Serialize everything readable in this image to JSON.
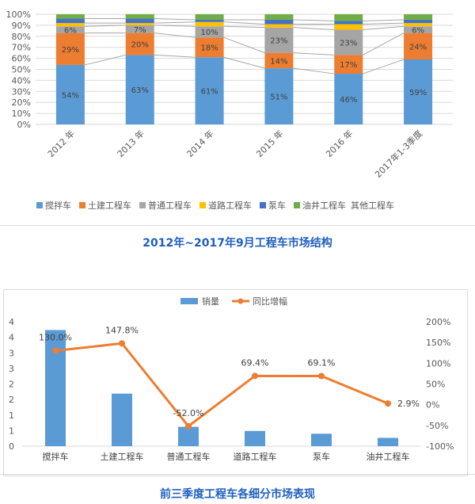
{
  "chart_data": [
    {
      "type": "bar",
      "stacked": true,
      "percent": true,
      "categories": [
        "2012 年",
        "2013 年",
        "2014 年",
        "2015 年",
        "2016 年",
        "2017年1-3季度"
      ],
      "series": [
        {
          "name": "搅拌车",
          "color": "#5b9bd5",
          "values": [
            54,
            63,
            61,
            51,
            46,
            59
          ]
        },
        {
          "name": "土建工程车",
          "color": "#ed7d31",
          "values": [
            29,
            20,
            18,
            14,
            17,
            24
          ]
        },
        {
          "name": "普通工程车",
          "color": "#a5a5a5",
          "values": [
            6,
            7,
            10,
            23,
            23,
            6
          ]
        },
        {
          "name": "道路工程车",
          "color": "#ffc000",
          "values": [
            3,
            2,
            4,
            3,
            5,
            3
          ]
        },
        {
          "name": "泵车",
          "color": "#4472c4",
          "values": [
            4,
            4,
            2,
            4,
            3,
            3
          ]
        },
        {
          "name": "油井工程车",
          "color": "#70ad47",
          "values": [
            4,
            4,
            5,
            5,
            6,
            5
          ]
        }
      ],
      "data_labels": {
        "搅拌车": [
          "54%",
          "63%",
          "61%",
          "51%",
          "46%",
          "59%"
        ],
        "土建工程车": [
          "29%",
          "20%",
          "18%",
          "14%",
          "17%",
          "24%"
        ],
        "普通工程车": [
          "6%",
          "7%",
          "10%",
          "23%",
          "23%",
          "6%"
        ]
      },
      "y_ticks": [
        "0%",
        "10%",
        "20%",
        "30%",
        "40%",
        "50%",
        "60%",
        "70%",
        "80%",
        "90%",
        "100%"
      ],
      "legend_tail": "其他工程车",
      "ylim": [
        0,
        100
      ],
      "legend_position": "bottom",
      "caption": "2012年~2017年9月工程车市场结构"
    },
    {
      "type": "bar",
      "combo": "bar+line",
      "categories": [
        "搅拌车",
        "土建工程车",
        "普通工程车",
        "道路工程车",
        "泵车",
        "油井工程车"
      ],
      "series": [
        {
          "name": "销量",
          "color": "#5b9bd5",
          "axis": "left",
          "values": [
            4.2,
            1.9,
            0.7,
            0.55,
            0.45,
            0.3
          ]
        },
        {
          "name": "同比增幅",
          "color": "#ed7d31",
          "axis": "right",
          "type": "line",
          "values": [
            130.0,
            147.8,
            -52.0,
            69.4,
            69.1,
            2.9
          ],
          "labels": [
            "130.0%",
            "147.8%",
            "-52.0%",
            "69.4%",
            "69.1%",
            "2.9%"
          ]
        }
      ],
      "left_ticks": [
        "0",
        "1",
        "1",
        "2",
        "2",
        "3",
        "3",
        "4",
        "4"
      ],
      "right_ticks": [
        "-100%",
        "-50%",
        "0%",
        "50%",
        "100%",
        "150%",
        "200%"
      ],
      "ylim_left": [
        0,
        4.5
      ],
      "ylim_right": [
        -100,
        200
      ],
      "legend_position": "top",
      "caption": "前三季度工程车各细分市场表现"
    }
  ]
}
